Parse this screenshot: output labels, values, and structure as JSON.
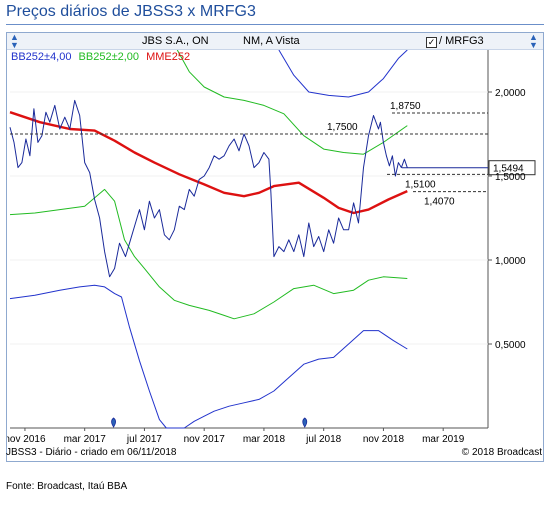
{
  "title": "Preços diários de JBSS3 x MRFG3",
  "toolbar": {
    "instrument": "JBS S.A., ON",
    "market": "NM, A Vista",
    "compare_checkbox_mark": "✓",
    "compare_label": "/ MRFG3"
  },
  "legend": {
    "bb400": {
      "label": "BB252±4,00",
      "color": "#2233cc"
    },
    "bb200": {
      "label": "BB252±2,00",
      "color": "#22bb22"
    },
    "mme": {
      "label": "MME252",
      "color": "#dd1111"
    }
  },
  "footer": {
    "left": "JBSS3 - Diário - criado em 06/11/2018",
    "right": "© 2018 Broadcast"
  },
  "source": "Fonte: Broadcast, Itaú BBA",
  "chart_data": {
    "type": "line",
    "x_ticks": [
      "nov 2016",
      "mar 2017",
      "jul 2017",
      "nov 2017",
      "mar 2018",
      "jul 2018",
      "nov 2018",
      "mar 2019"
    ],
    "y_ticks": [
      "2,0000",
      "1,5000",
      "1,0000",
      "0,5000"
    ],
    "y_tick_values": [
      2.0,
      1.5,
      1.0,
      0.5
    ],
    "ylim": [
      0.0,
      2.25
    ],
    "current_value_label": "1,5494",
    "current_value": 1.5494,
    "reference_lines": [
      {
        "label": "1,8750",
        "value": 1.875,
        "style": "dashed"
      },
      {
        "label": "1,7500",
        "value": 1.75,
        "style": "dashed"
      },
      {
        "label": "1,5100",
        "value": 1.51,
        "style": "dashed"
      },
      {
        "label": "1,4070",
        "value": 1.407,
        "style": "dashed"
      }
    ],
    "event_markers": [
      "jul 2017",
      "jul 2018"
    ],
    "series": [
      {
        "name": "JBSS3 / MRFG3",
        "color": "#1a2a9a",
        "x": [
          0,
          4,
          8,
          12,
          16,
          20,
          24,
          28,
          32,
          36,
          40,
          45,
          50,
          55,
          60,
          65,
          70,
          75,
          80,
          85,
          90,
          95,
          100,
          105,
          110,
          116,
          120,
          125,
          130,
          135,
          140,
          145,
          150,
          155,
          160,
          165,
          170,
          175,
          180,
          185,
          190,
          195,
          200,
          205,
          210,
          215,
          220,
          225,
          230,
          235,
          240,
          245,
          250,
          255,
          260,
          262,
          265,
          270,
          275,
          280,
          285,
          290,
          295,
          300,
          305,
          310,
          315,
          320,
          325,
          330,
          335,
          340,
          345,
          350,
          355,
          360,
          365,
          370,
          372,
          375,
          378,
          381,
          384,
          387,
          390,
          393,
          396,
          399
        ],
        "y": [
          1.79,
          1.7,
          1.55,
          1.58,
          1.72,
          1.62,
          1.9,
          1.7,
          1.74,
          1.88,
          1.82,
          1.92,
          1.78,
          1.85,
          1.78,
          1.95,
          1.86,
          1.58,
          1.52,
          1.36,
          1.25,
          1.05,
          0.9,
          0.95,
          1.1,
          1.02,
          1.1,
          1.2,
          1.3,
          1.18,
          1.35,
          1.25,
          1.3,
          1.15,
          1.12,
          1.18,
          1.32,
          1.3,
          1.42,
          1.38,
          1.48,
          1.5,
          1.55,
          1.62,
          1.6,
          1.62,
          1.68,
          1.72,
          1.65,
          1.75,
          1.68,
          1.55,
          1.58,
          1.64,
          1.6,
          1.4,
          1.02,
          1.08,
          1.05,
          1.12,
          1.05,
          1.15,
          1.02,
          1.22,
          1.08,
          1.14,
          1.05,
          1.18,
          1.1,
          1.25,
          1.18,
          1.18,
          1.34,
          1.22,
          1.55,
          1.74,
          1.86,
          1.78,
          1.82,
          1.7,
          1.62,
          1.56,
          1.62,
          1.5,
          1.58,
          1.55,
          1.6,
          1.5494
        ]
      },
      {
        "name": "MME252",
        "color": "#dd1111",
        "x": [
          0,
          30,
          60,
          85,
          105,
          125,
          145,
          170,
          195,
          215,
          235,
          250,
          265,
          290,
          315,
          330,
          345,
          360,
          380,
          399
        ],
        "y": [
          1.88,
          1.82,
          1.78,
          1.77,
          1.71,
          1.64,
          1.58,
          1.51,
          1.45,
          1.4,
          1.38,
          1.4,
          1.44,
          1.46,
          1.37,
          1.31,
          1.28,
          1.3,
          1.36,
          1.41
        ]
      },
      {
        "name": "BB252±2,00",
        "color": "#22bb22",
        "x": [
          0,
          25,
          50,
          75,
          95,
          105,
          115,
          125,
          135,
          150,
          165,
          180,
          200,
          215,
          225,
          245,
          265,
          285,
          305,
          325,
          345,
          360,
          375,
          399
        ],
        "y": [
          1.27,
          1.28,
          1.3,
          1.32,
          1.42,
          1.35,
          1.12,
          1.02,
          0.95,
          0.84,
          0.76,
          0.73,
          0.7,
          0.67,
          0.65,
          0.68,
          0.75,
          0.83,
          0.85,
          0.8,
          0.82,
          0.88,
          0.9,
          0.89
        ]
      },
      {
        "name": "BB252±2,00 superior",
        "color": "#22bb22",
        "x": [
          168,
          180,
          195,
          215,
          235,
          255,
          275,
          295,
          315,
          335,
          355,
          375,
          399
        ],
        "y": [
          2.25,
          2.12,
          2.03,
          1.97,
          1.95,
          1.92,
          1.87,
          1.74,
          1.66,
          1.64,
          1.63,
          1.7,
          1.8
        ]
      },
      {
        "name": "BB252±4,00",
        "color": "#2233cc",
        "x": [
          0,
          25,
          50,
          70,
          85,
          95,
          105,
          112,
          120,
          130,
          140,
          150,
          157,
          165,
          175,
          185,
          195,
          205,
          220,
          235,
          250,
          265,
          280,
          295,
          310,
          325,
          340,
          355,
          370,
          385,
          399
        ],
        "y": [
          0.77,
          0.79,
          0.82,
          0.84,
          0.85,
          0.84,
          0.8,
          0.78,
          0.6,
          0.4,
          0.22,
          0.05,
          0.0,
          0.0,
          0.0,
          0.04,
          0.07,
          0.1,
          0.13,
          0.15,
          0.17,
          0.22,
          0.3,
          0.38,
          0.41,
          0.42,
          0.5,
          0.58,
          0.58,
          0.52,
          0.47
        ]
      },
      {
        "name": "BB252±4,00 superior",
        "color": "#2233cc",
        "x": [
          270,
          285,
          300,
          320,
          340,
          360,
          375,
          390,
          399
        ],
        "y": [
          2.25,
          2.1,
          2.0,
          1.98,
          1.97,
          2.0,
          2.08,
          2.2,
          2.25
        ]
      }
    ]
  }
}
